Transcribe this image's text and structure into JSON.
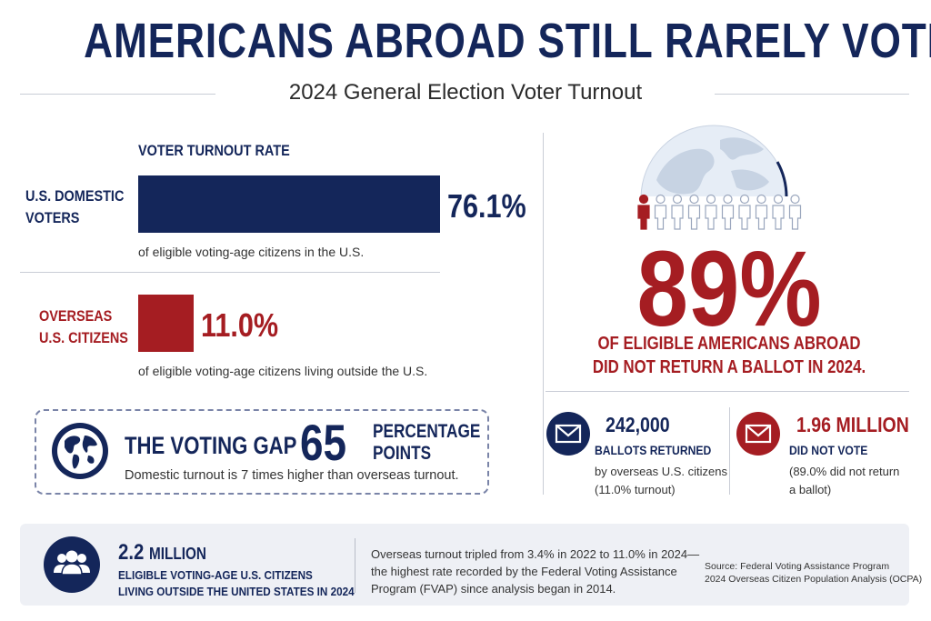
{
  "header": {
    "title": "AMERICANS ABROAD STILL RARELY VOTE",
    "subtitle": "2024 General Election Voter Turnout"
  },
  "turnout": {
    "section_label": "VOTER TURNOUT RATE",
    "domestic": {
      "label_line1": "U.S. DOMESTIC",
      "label_line2": "VOTERS",
      "rate": 76.1,
      "value_text": "76.1%",
      "note": "of eligible voting-age citizens in the U.S.",
      "color": "#14265a"
    },
    "overseas": {
      "label_line1": "OVERSEAS",
      "label_line2": "U.S. CITIZENS",
      "rate": 11.0,
      "value_text": "11.0%",
      "note": "of eligible voting-age citizens living outside the U.S.",
      "color": "#a51d22"
    }
  },
  "gap": {
    "label": "THE VOTING GAP",
    "number": "65",
    "unit_line1": "PERCENTAGE",
    "unit_line2": "POINTS",
    "note": "Domestic turnout is 7 times higher than overseas turnout.",
    "icon": "globe-icon"
  },
  "hero": {
    "percent": "89%",
    "caption_line1": "OF ELIGIBLE AMERICANS ABROAD",
    "caption_line2": "DID NOT RETURN A BALLOT IN 2024.",
    "people_total": 10,
    "people_highlighted": 1,
    "icons": [
      "globe-icon",
      "person-icon"
    ]
  },
  "stats": {
    "returned": {
      "value": "242,000",
      "label": "BALLOTS RETURNED",
      "note_line1": "by overseas U.S. citizens",
      "note_line2": "(11.0% turnout)",
      "icon": "envelope-icon"
    },
    "not_voted": {
      "value": "1.96 MILLION",
      "label": "DID NOT VOTE",
      "note_line1": "(89.0% did not return",
      "note_line2": "a ballot)",
      "icon": "envelope-icon"
    }
  },
  "footer": {
    "value_number": "2.2",
    "value_unit": "MILLION",
    "desc_line1": "ELIGIBLE VOTING-AGE U.S. CITIZENS",
    "desc_line2": "LIVING OUTSIDE THE UNITED STATES IN 2024",
    "note_line1": "Overseas turnout tripled from 3.4% in 2022 to 11.0% in 2024—",
    "note_line2": "the highest rate recorded by the Federal Voting Assistance",
    "note_line3": "Program (FVAP) since analysis began in 2014.",
    "source_line1": "Source: Federal Voting Assistance Program",
    "source_line2": "2024 Overseas Citizen Population Analysis (OCPA)",
    "icon": "people-group-icon"
  },
  "colors": {
    "navy": "#14265a",
    "red": "#a51d22",
    "panel": "#eef0f5"
  }
}
